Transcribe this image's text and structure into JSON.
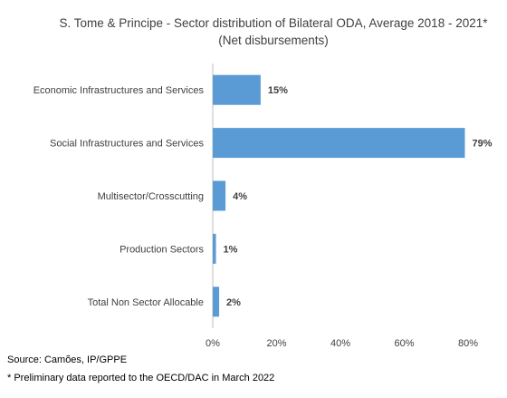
{
  "chart_data": {
    "type": "bar",
    "orientation": "horizontal",
    "title": "S. Tome & Principe - Sector distribution of Bilateral ODA, Average 2018 - 2021*",
    "subtitle": "(Net disbursements)",
    "categories": [
      "Economic Infrastructures and Services",
      "Social Infrastructures and Services",
      "Multisector/Crosscutting",
      "Production Sectors",
      "Total Non Sector Allocable"
    ],
    "values": [
      15,
      79,
      4,
      1,
      2
    ],
    "data_labels": [
      "15%",
      "79%",
      "4%",
      "1%",
      "2%"
    ],
    "xlim": [
      0,
      80
    ],
    "x_ticks": [
      0,
      20,
      40,
      60,
      80
    ],
    "x_tick_labels": [
      "0%",
      "20%",
      "40%",
      "60%",
      "80%"
    ],
    "bar_color": "#5b9bd5",
    "grid": false,
    "legend": "none"
  },
  "footer": {
    "source": "Source: Camões, IP/GPPE",
    "note": "* Preliminary data reported to the OECD/DAC in March 2022"
  }
}
